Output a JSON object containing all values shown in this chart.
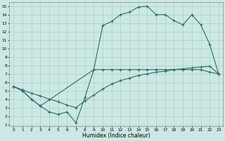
{
  "xlabel": "Humidex (Indice chaleur)",
  "bg_color": "#cce8e4",
  "grid_color": "#aacfc8",
  "line_color": "#2d6b63",
  "xlim": [
    0,
    23
  ],
  "ylim": [
    1,
    15
  ],
  "xticks": [
    0,
    1,
    2,
    3,
    4,
    5,
    6,
    7,
    8,
    9,
    10,
    11,
    12,
    13,
    14,
    15,
    16,
    17,
    18,
    19,
    20,
    21,
    22,
    23
  ],
  "yticks": [
    1,
    2,
    3,
    4,
    5,
    6,
    7,
    8,
    9,
    10,
    11,
    12,
    13,
    14,
    15
  ],
  "line1_x": [
    0,
    1,
    2,
    3,
    4,
    5,
    6,
    7,
    8,
    9,
    10,
    11,
    12,
    13,
    14,
    15,
    16,
    17,
    18,
    19,
    20,
    21,
    22,
    23
  ],
  "line1_y": [
    5.5,
    5.0,
    4.0,
    3.2,
    2.5,
    2.2,
    2.5,
    1.2,
    4.2,
    7.5,
    7.5,
    7.5,
    7.5,
    7.5,
    7.5,
    7.5,
    7.5,
    7.5,
    7.5,
    7.5,
    7.5,
    7.5,
    7.2,
    7.0
  ],
  "line2_x": [
    0,
    1,
    2,
    3,
    9,
    10,
    11,
    12,
    13,
    14,
    15,
    16,
    17,
    18,
    19,
    20,
    21,
    22,
    23
  ],
  "line2_y": [
    5.5,
    5.0,
    4.0,
    3.2,
    7.5,
    12.7,
    13.2,
    14.0,
    14.3,
    14.9,
    15.0,
    14.0,
    14.0,
    13.3,
    12.8,
    14.0,
    12.8,
    10.5,
    7.0
  ],
  "line3_x": [
    0,
    1,
    2,
    3,
    4,
    5,
    6,
    7,
    8,
    9,
    10,
    11,
    12,
    13,
    14,
    15,
    16,
    17,
    18,
    19,
    20,
    21,
    22,
    23
  ],
  "line3_y": [
    5.5,
    5.1,
    4.7,
    4.4,
    4.0,
    3.7,
    3.3,
    3.0,
    3.8,
    4.5,
    5.2,
    5.8,
    6.2,
    6.5,
    6.8,
    7.0,
    7.2,
    7.3,
    7.5,
    7.6,
    7.7,
    7.8,
    7.9,
    7.0
  ]
}
